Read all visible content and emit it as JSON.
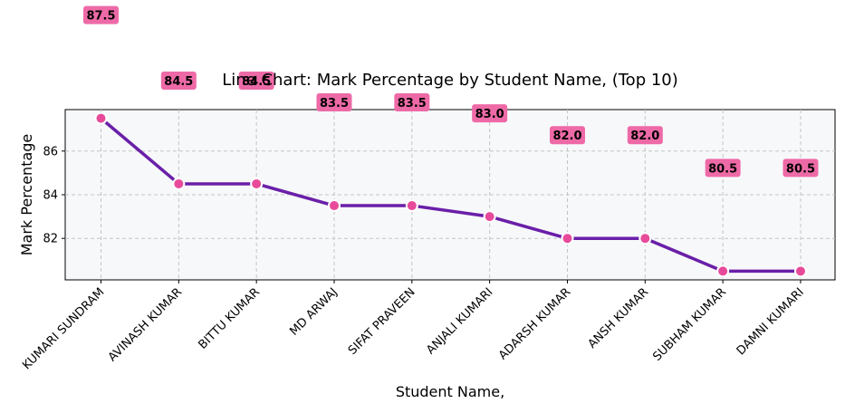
{
  "chart_data": {
    "type": "line",
    "title": "Line Chart: Mark Percentage by Student Name, (Top 10)",
    "xlabel": "Student Name,",
    "ylabel": "Mark Percentage",
    "categories": [
      "KUMARI SUNDRAM",
      "AVINASH KUMAR",
      "BITTU KUMAR",
      "MD ARWAJ",
      "SIFAT PRAVEEN",
      "ANJALI KUMARI",
      "ADARSH KUMAR",
      "ANSH KUMAR",
      "SUBHAM KUMAR",
      "DAMNI KUMARI"
    ],
    "values": [
      87.5,
      84.5,
      84.5,
      83.5,
      83.5,
      83.0,
      82.0,
      82.0,
      80.5,
      80.5
    ],
    "data_labels": [
      "87.5",
      "84.5",
      "84.5",
      "83.5",
      "83.5",
      "83.0",
      "82.0",
      "82.0",
      "80.5",
      "80.5"
    ],
    "yticks": [
      82,
      84,
      86
    ],
    "ytick_labels": [
      "82",
      "84",
      "86"
    ],
    "ylim": [
      80.1,
      87.9
    ],
    "grid": true,
    "colors": {
      "line": "#6a1fa8",
      "marker": "#e84a9a",
      "label_box": "#ee6aa7",
      "plot_bg": "#f7f8fa",
      "grid": "#c4c4c4"
    }
  }
}
